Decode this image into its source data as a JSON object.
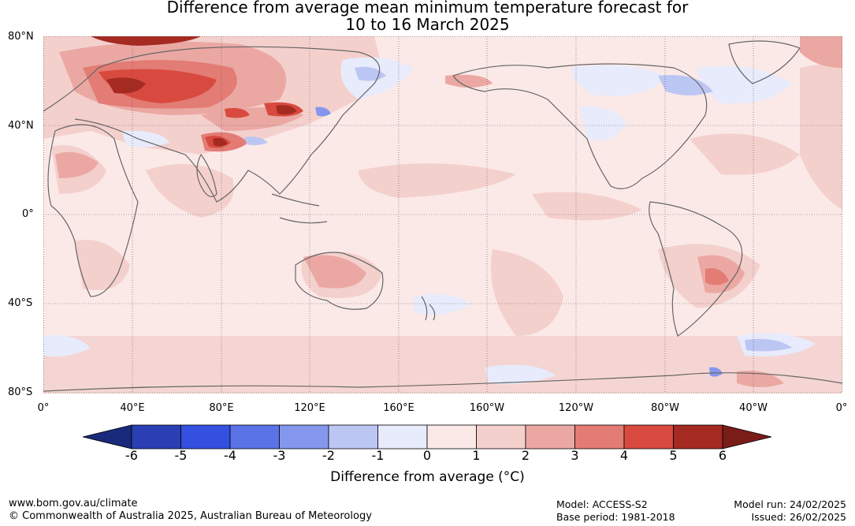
{
  "title": {
    "line1": "Difference from average mean minimum temperature forecast for",
    "line2": "10 to 16 March 2025"
  },
  "map": {
    "lat_labels": [
      "80°N",
      "40°N",
      "0°",
      "40°S",
      "80°S"
    ],
    "lon_labels": [
      "0°",
      "40°E",
      "80°E",
      "120°E",
      "160°E",
      "160°W",
      "120°W",
      "80°W",
      "40°W",
      "0°"
    ]
  },
  "colorbar": {
    "label": "Difference from average (°C)",
    "ticks": [
      "-6",
      "-5",
      "-4",
      "-3",
      "-2",
      "-1",
      "0",
      "1",
      "2",
      "3",
      "4",
      "5",
      "6"
    ],
    "colors": [
      "#1a2a7a",
      "#2a3fb3",
      "#3350e0",
      "#5a73e6",
      "#8597ec",
      "#bcc6f3",
      "#e8ebfb",
      "#fbe9e8",
      "#f4d0cd",
      "#eba8a3",
      "#e27c74",
      "#d84a3f",
      "#a52a22",
      "#7a1c18"
    ]
  },
  "footer": {
    "url": "www.bom.gov.au/climate",
    "copyright": "© Commonwealth of Australia 2025, Australian Bureau of Meteorology",
    "model": "Model: ACCESS-S2",
    "base_period": "Base period: 1981-2018",
    "model_run": "Model run: 24/02/2025",
    "issued": "Issued: 26/02/2025"
  }
}
